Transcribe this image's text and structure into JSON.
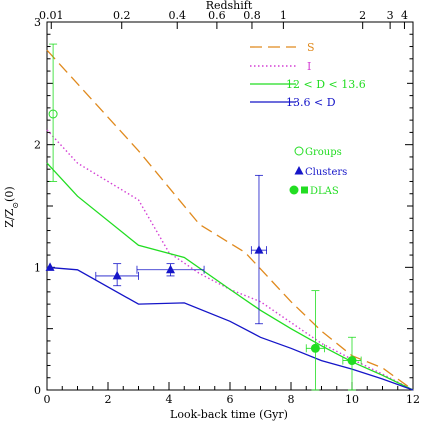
{
  "chart_data": {
    "type": "line",
    "xlabel": "Look-back time (Gyr)",
    "ylabel": "Z/Z_⊙(0)",
    "top_axis_label": "Redshift",
    "xlim": [
      0,
      12
    ],
    "ylim": [
      0,
      3
    ],
    "x_ticks": [
      0,
      2,
      4,
      6,
      8,
      10,
      12
    ],
    "y_ticks": [
      0,
      1,
      2,
      3
    ],
    "top_ticks": [
      {
        "label": "0.01",
        "t": 0.14
      },
      {
        "label": "0.2",
        "t": 2.45
      },
      {
        "label": "0.4",
        "t": 4.27
      },
      {
        "label": "0.6",
        "t": 5.57
      },
      {
        "label": "0.8",
        "t": 6.72
      },
      {
        "label": "1",
        "t": 7.75
      },
      {
        "label": "2",
        "t": 10.35
      },
      {
        "label": "3",
        "t": 11.25
      },
      {
        "label": "4",
        "t": 11.72
      }
    ],
    "legend_position": "top-right",
    "series": [
      {
        "name": "S",
        "style": "dashed",
        "color": "#e08a1e",
        "x": [
          0,
          3,
          5,
          6.5,
          8,
          9,
          10,
          11,
          12
        ],
        "y": [
          2.77,
          1.95,
          1.35,
          1.12,
          0.72,
          0.48,
          0.28,
          0.18,
          0
        ]
      },
      {
        "name": "I",
        "style": "dotted",
        "color": "#d43fd4",
        "x": [
          0,
          1,
          3,
          4,
          5,
          6,
          7,
          8,
          9,
          10,
          11,
          12
        ],
        "y": [
          2.12,
          1.85,
          1.55,
          1.12,
          0.95,
          0.82,
          0.72,
          0.55,
          0.38,
          0.25,
          0.13,
          0
        ]
      },
      {
        "name": "12 < D < 13.6",
        "style": "solid",
        "color": "#22dd22",
        "x": [
          0,
          1,
          3,
          4.5,
          6,
          7,
          8,
          9,
          10,
          11,
          12
        ],
        "y": [
          1.85,
          1.58,
          1.18,
          1.08,
          0.82,
          0.65,
          0.5,
          0.36,
          0.23,
          0.12,
          0
        ]
      },
      {
        "name": "13.6 < D",
        "style": "solid",
        "color": "#1515c8",
        "x": [
          0,
          1,
          3,
          4.5,
          6,
          7,
          8,
          9,
          10,
          11,
          12
        ],
        "y": [
          1.0,
          0.98,
          0.7,
          0.71,
          0.56,
          0.43,
          0.34,
          0.24,
          0.17,
          0.09,
          0
        ]
      }
    ],
    "points": [
      {
        "name": "Groups",
        "marker": "open-circle",
        "color": "#22dd22",
        "data": [
          {
            "x": 0.2,
            "y": 2.25,
            "yerr": [
              0.55,
              0.57
            ]
          }
        ]
      },
      {
        "name": "Clusters",
        "marker": "triangle",
        "color": "#1515c8",
        "data": [
          {
            "x": 0.1,
            "y": 1.0
          },
          {
            "x": 2.3,
            "y": 0.93,
            "xerr": [
              0.7,
              0.7
            ],
            "yerr": [
              0.08,
              0.1
            ]
          },
          {
            "x": 4.05,
            "y": 0.98,
            "xerr": [
              1.1,
              1.1
            ],
            "yerr": [
              0.05,
              0.05
            ]
          },
          {
            "x": 6.95,
            "y": 1.14,
            "xerr": [
              0.25,
              0.25
            ],
            "yerr": [
              0.6,
              0.61
            ]
          }
        ]
      },
      {
        "name": "DLAS",
        "marker": "filled-circle",
        "color": "#22dd22",
        "data": [
          {
            "x": 8.8,
            "y": 0.34,
            "xerr": [
              0.3,
              0.3
            ],
            "yerr": [
              0.34,
              0.47
            ]
          },
          {
            "x": 10.0,
            "y": 0.24,
            "xerr": [
              0.3,
              0.3
            ],
            "yerr": [
              0.24,
              0.19
            ]
          }
        ]
      }
    ],
    "legend": {
      "lines": [
        {
          "label": "S",
          "color": "#e08a1e",
          "style": "dashed"
        },
        {
          "label": "I",
          "color": "#d43fd4",
          "style": "dotted"
        },
        {
          "label": "12 < D < 13.6",
          "color": "#22dd22",
          "style": "solid"
        },
        {
          "label": "13.6 < D",
          "color": "#1515c8",
          "style": "solid"
        }
      ],
      "markers": [
        {
          "label": "Groups",
          "color": "#22dd22",
          "marker": "open-circle"
        },
        {
          "label": "Clusters",
          "color": "#1515c8",
          "marker": "triangle"
        },
        {
          "label": "DLAS",
          "color": "#22dd22",
          "marker": "circle-square"
        }
      ]
    }
  }
}
